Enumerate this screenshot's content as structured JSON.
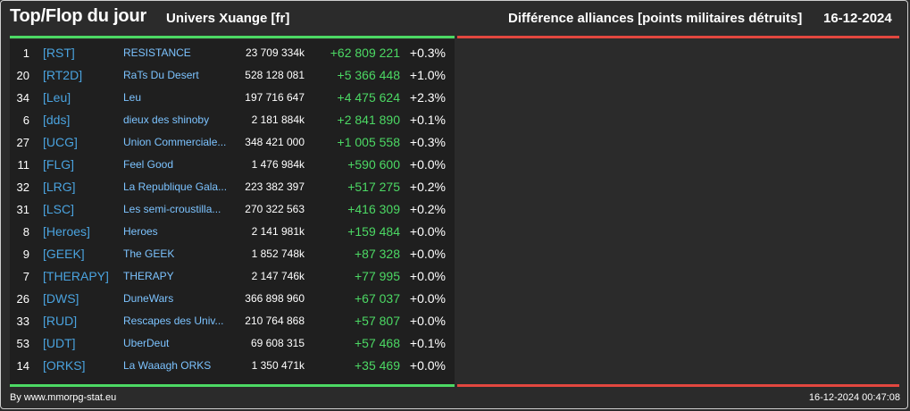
{
  "header": {
    "title": "Top/Flop du jour",
    "universe": "Univers Xuange [fr]",
    "right_title": "Différence alliances [points militaires détruits]",
    "date": "16-12-2024"
  },
  "colors": {
    "background": "#2b2b2b",
    "panel": "#1f1f1f",
    "top_bar": "#4cd964",
    "flop_bar": "#e2473f",
    "tag": "#4aa3df",
    "name": "#7cc3ff",
    "positive": "#4cd964"
  },
  "rows": [
    {
      "rank": "1",
      "tag": "[RST]",
      "name": "RESISTANCE",
      "points": "23 709 334k",
      "diff": "+62 809 221",
      "pct": "+0.3%"
    },
    {
      "rank": "20",
      "tag": "[RT2D]",
      "name": "RaTs Du Desert",
      "points": "528 128 081",
      "diff": "+5 366 448",
      "pct": "+1.0%"
    },
    {
      "rank": "34",
      "tag": "[Leu]",
      "name": "Leu",
      "points": "197 716 647",
      "diff": "+4 475 624",
      "pct": "+2.3%"
    },
    {
      "rank": "6",
      "tag": "[dds]",
      "name": "dieux des shinoby",
      "points": "2 181 884k",
      "diff": "+2 841 890",
      "pct": "+0.1%"
    },
    {
      "rank": "27",
      "tag": "[UCG]",
      "name": "Union Commerciale...",
      "points": "348 421 000",
      "diff": "+1 005 558",
      "pct": "+0.3%"
    },
    {
      "rank": "11",
      "tag": "[FLG]",
      "name": "Feel Good",
      "points": "1 476 984k",
      "diff": "+590 600",
      "pct": "+0.0%"
    },
    {
      "rank": "32",
      "tag": "[LRG]",
      "name": "La Republique Gala...",
      "points": "223 382 397",
      "diff": "+517 275",
      "pct": "+0.2%"
    },
    {
      "rank": "31",
      "tag": "[LSC]",
      "name": "Les semi-croustilla...",
      "points": "270 322 563",
      "diff": "+416 309",
      "pct": "+0.2%"
    },
    {
      "rank": "8",
      "tag": "[Heroes]",
      "name": "Heroes",
      "points": "2 141 981k",
      "diff": "+159 484",
      "pct": "+0.0%"
    },
    {
      "rank": "9",
      "tag": "[GEEK]",
      "name": "The GEEK",
      "points": "1 852 748k",
      "diff": "+87 328",
      "pct": "+0.0%"
    },
    {
      "rank": "7",
      "tag": "[THERAPY]",
      "name": "THERAPY",
      "points": "2 147 746k",
      "diff": "+77 995",
      "pct": "+0.0%"
    },
    {
      "rank": "26",
      "tag": "[DWS]",
      "name": "DuneWars",
      "points": "366 898 960",
      "diff": "+67 037",
      "pct": "+0.0%"
    },
    {
      "rank": "33",
      "tag": "[RUD]",
      "name": "Rescapes des Univ...",
      "points": "210 764 868",
      "diff": "+57 807",
      "pct": "+0.0%"
    },
    {
      "rank": "53",
      "tag": "[UDT]",
      "name": "UberDeut",
      "points": "69 608 315",
      "diff": "+57 468",
      "pct": "+0.1%"
    },
    {
      "rank": "14",
      "tag": "[ORKS]",
      "name": "La Waaagh ORKS",
      "points": "1 350 471k",
      "diff": "+35 469",
      "pct": "+0.0%"
    }
  ],
  "footer": {
    "credit": "By www.mmorpg-stat.eu",
    "timestamp": "16-12-2024 00:47:08"
  }
}
